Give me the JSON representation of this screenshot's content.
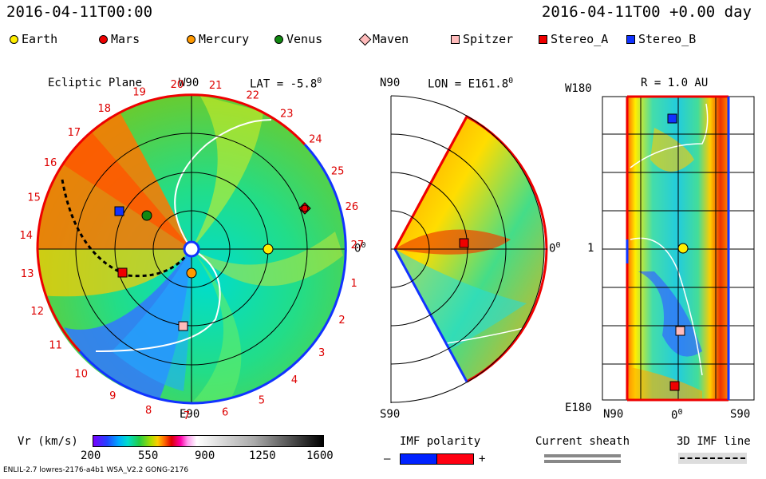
{
  "header": {
    "left_time": "2016-04-11T00:00",
    "right_time": "2016-04-11T00 +0.00 day"
  },
  "legend": [
    {
      "label": "Earth",
      "color": "#ffee00",
      "shape": "circle"
    },
    {
      "label": "Mars",
      "color": "#ee0000",
      "shape": "circle"
    },
    {
      "label": "Mercury",
      "color": "#ff9900",
      "shape": "circle"
    },
    {
      "label": "Venus",
      "color": "#118811",
      "shape": "circle"
    },
    {
      "label": "Maven",
      "color": "#ffbbbb",
      "shape": "diamond"
    },
    {
      "label": "Spitzer",
      "color": "#ffbbbb",
      "shape": "square"
    },
    {
      "label": "Stereo_A",
      "color": "#ee0000",
      "shape": "square"
    },
    {
      "label": "Stereo_B",
      "color": "#1133ff",
      "shape": "square"
    }
  ],
  "ecliptic": {
    "title": "Ecliptic Plane",
    "top_label": "W90",
    "bottom_label": "E90",
    "right_label": "0",
    "lat": "LAT = -5.8",
    "deg": "0",
    "sector_numbers": [
      "20",
      "21",
      "22",
      "23",
      "24",
      "25",
      "26",
      "27",
      "1",
      "2",
      "3",
      "4",
      "5",
      "6",
      "7",
      "8",
      "9",
      "10",
      "11",
      "12",
      "13",
      "14",
      "15",
      "16",
      "17",
      "18",
      "19"
    ]
  },
  "meridional": {
    "top_left": "N90",
    "bottom_left": "S90",
    "lon": "LON = E161.8",
    "deg": "0",
    "right_label": "0"
  },
  "radial": {
    "r_label": "R = 1.0 AU",
    "top_left": "W180",
    "bottom_left": "E180",
    "mid_left": "1",
    "x_left": "N90",
    "x_mid": "0",
    "x_right": "S90",
    "deg": "0"
  },
  "colorbar": {
    "label": "Vr (km/s)",
    "ticks": [
      "200",
      "550",
      "900",
      "1250",
      "1600"
    ]
  },
  "imf": {
    "title": "IMF polarity",
    "minus": "–",
    "plus": "+"
  },
  "sheath": {
    "title": "Current sheath"
  },
  "imfline": {
    "title": "3D IMF line"
  },
  "footer": {
    "left": "ENLIL-2.7 lowres-2176-a4b1 WSA_V2.2 GONG-2176"
  }
}
